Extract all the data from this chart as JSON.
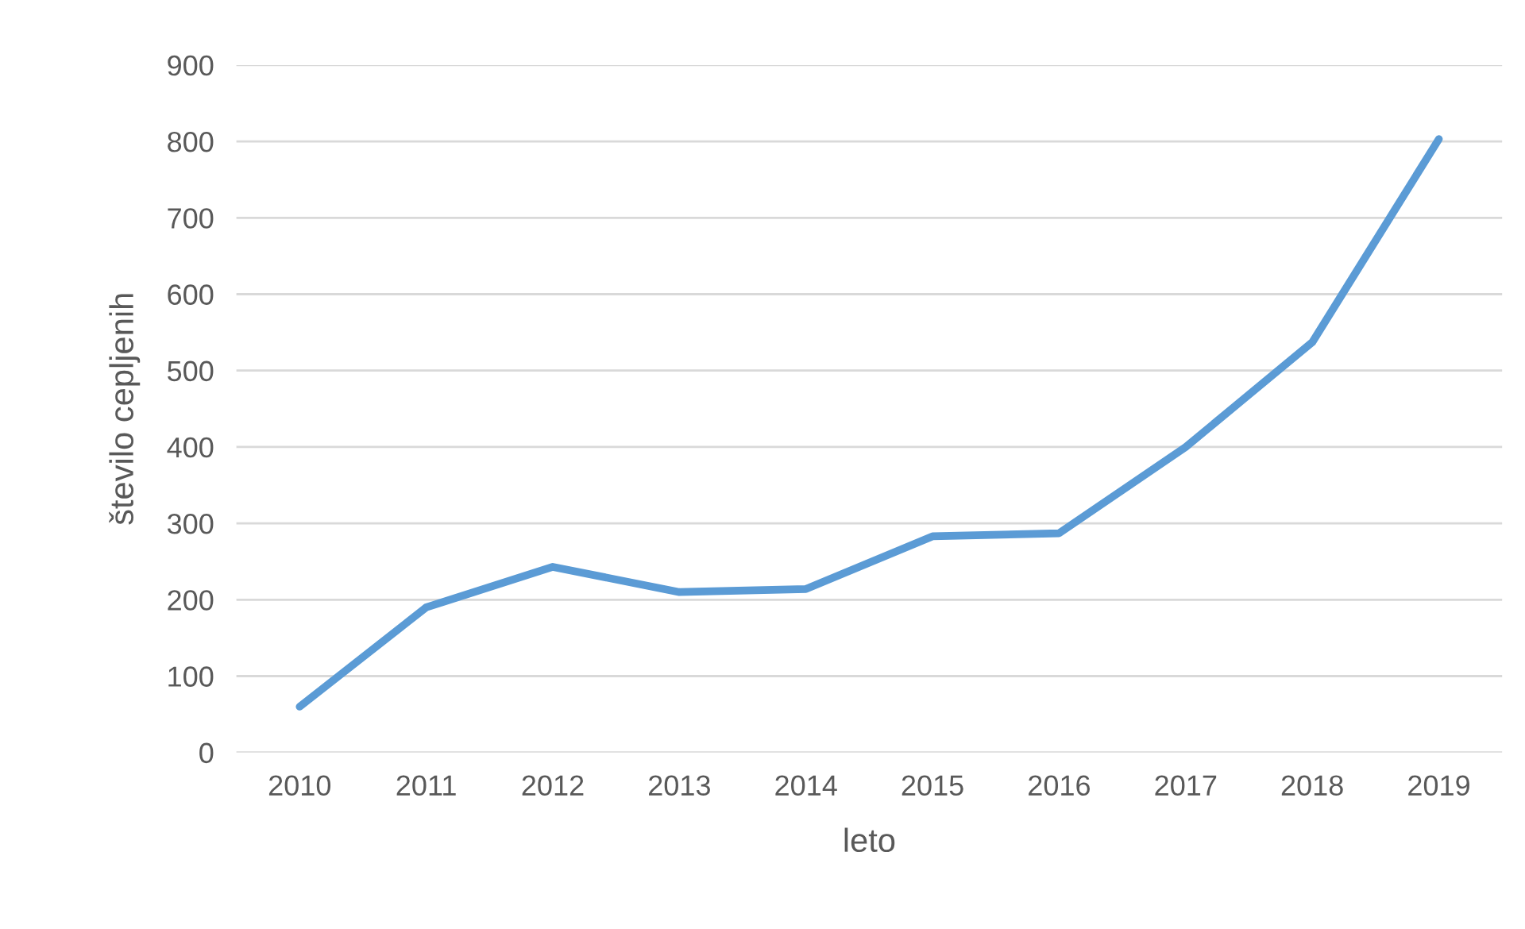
{
  "chart_data": {
    "type": "line",
    "xlabel": "leto",
    "ylabel": "število cepljenih",
    "categories": [
      "2010",
      "2011",
      "2012",
      "2013",
      "2014",
      "2015",
      "2016",
      "2017",
      "2018",
      "2019"
    ],
    "series": [
      {
        "color": "#5b9bd5",
        "values": [
          60,
          190,
          243,
          210,
          214,
          283,
          287,
          400,
          537,
          803
        ]
      }
    ],
    "ylim": [
      0,
      900
    ],
    "yticks": [
      0,
      100,
      200,
      300,
      400,
      500,
      600,
      700,
      800,
      900
    ],
    "grid": "y",
    "marker": "none",
    "line_style": "solid"
  }
}
